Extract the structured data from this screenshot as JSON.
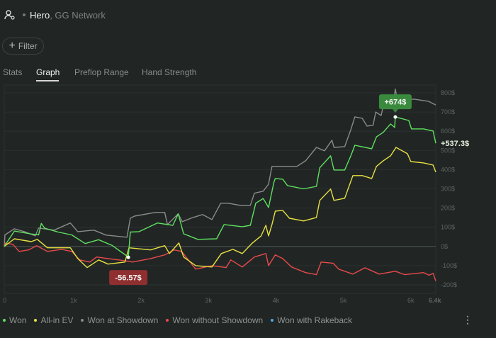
{
  "header": {
    "player": "Hero",
    "network": ", GG Network",
    "icon": "user-settings-icon"
  },
  "filter": {
    "label": "Filter",
    "icon": "plus-icon"
  },
  "tabs": [
    {
      "label": "Stats",
      "active": false
    },
    {
      "label": "Graph",
      "active": true
    },
    {
      "label": "Preflop Range",
      "active": false
    },
    {
      "label": "Hand Strength",
      "active": false
    }
  ],
  "colors": {
    "won": "#5fe05f",
    "allin_ev": "#e8e040",
    "showdown": "#8a8a8a",
    "non_showdown": "#e84a4a",
    "rakeback": "#4aa8e8",
    "peak_tooltip": "#3a8a3e",
    "low_tooltip": "#8f2f2f"
  },
  "chart_data": {
    "type": "line",
    "x_ticks": [
      "0",
      "1k",
      "2k",
      "3k",
      "4k",
      "5k",
      "6k",
      "6.4k"
    ],
    "x_tick_values": [
      0,
      1000,
      2000,
      3000,
      4000,
      5000,
      6000,
      6400
    ],
    "y_ticks": [
      "800$",
      "700$",
      "600$",
      "500$",
      "400$",
      "300$",
      "200$",
      "100$",
      "0$",
      "-100$",
      "-200$"
    ],
    "y_tick_values": [
      800,
      700,
      600,
      500,
      400,
      300,
      200,
      100,
      0,
      -100,
      -200
    ],
    "xlim": [
      0,
      6400
    ],
    "ylim": [
      -200,
      800
    ],
    "grid": true,
    "legend": "bottom",
    "end_label": "+537.3$",
    "annotations": [
      {
        "text": "+674$",
        "x": 5800,
        "y": 674,
        "series": "Won"
      },
      {
        "text": "-56.57$",
        "x": 1840,
        "y": -56.57,
        "series": "Won"
      }
    ],
    "series": [
      {
        "name": "Won",
        "key": "won",
        "points": [
          [
            0,
            0
          ],
          [
            150,
            80
          ],
          [
            400,
            65
          ],
          [
            510,
            60
          ],
          [
            550,
            120
          ],
          [
            600,
            95
          ],
          [
            800,
            75
          ],
          [
            1000,
            60
          ],
          [
            1200,
            15
          ],
          [
            1400,
            35
          ],
          [
            1600,
            5
          ],
          [
            1800,
            -45
          ],
          [
            1840,
            -56.57
          ],
          [
            1870,
            75
          ],
          [
            2000,
            77
          ],
          [
            2270,
            122
          ],
          [
            2500,
            110
          ],
          [
            2580,
            170
          ],
          [
            2660,
            66
          ],
          [
            2870,
            37
          ],
          [
            3150,
            40
          ],
          [
            3260,
            114
          ],
          [
            3530,
            103
          ],
          [
            3650,
            110
          ],
          [
            3730,
            225
          ],
          [
            3840,
            250
          ],
          [
            3920,
            203
          ],
          [
            4000,
            335
          ],
          [
            4020,
            354
          ],
          [
            4130,
            350
          ],
          [
            4200,
            317
          ],
          [
            4440,
            300
          ],
          [
            4630,
            313
          ],
          [
            4680,
            410
          ],
          [
            4840,
            472
          ],
          [
            4890,
            398
          ],
          [
            5050,
            398
          ],
          [
            5140,
            472
          ],
          [
            5200,
            527
          ],
          [
            5450,
            509
          ],
          [
            5520,
            571
          ],
          [
            5620,
            594
          ],
          [
            5730,
            638
          ],
          [
            5790,
            620
          ],
          [
            5800,
            674
          ],
          [
            6000,
            656
          ],
          [
            6040,
            612
          ],
          [
            6220,
            612
          ],
          [
            6360,
            601
          ],
          [
            6400,
            537.3
          ]
        ]
      },
      {
        "name": "All-in EV",
        "key": "allin_ev",
        "points": [
          [
            0,
            0
          ],
          [
            150,
            40
          ],
          [
            400,
            25
          ],
          [
            490,
            37
          ],
          [
            640,
            -7
          ],
          [
            980,
            -7
          ],
          [
            1090,
            -63
          ],
          [
            1230,
            -110
          ],
          [
            1400,
            -70
          ],
          [
            1540,
            -92
          ],
          [
            1790,
            -81
          ],
          [
            1850,
            -7
          ],
          [
            2170,
            -18
          ],
          [
            2380,
            4
          ],
          [
            2450,
            -37
          ],
          [
            2590,
            18
          ],
          [
            2660,
            -55
          ],
          [
            2840,
            -100
          ],
          [
            3080,
            -107
          ],
          [
            3220,
            -37
          ],
          [
            3390,
            -15
          ],
          [
            3530,
            -37
          ],
          [
            3680,
            18
          ],
          [
            3810,
            55
          ],
          [
            3880,
            110
          ],
          [
            3920,
            55
          ],
          [
            3970,
            114
          ],
          [
            4020,
            184
          ],
          [
            4130,
            188
          ],
          [
            4230,
            147
          ],
          [
            4440,
            133
          ],
          [
            4630,
            151
          ],
          [
            4680,
            240
          ],
          [
            4840,
            299
          ],
          [
            4890,
            240
          ],
          [
            5050,
            251
          ],
          [
            5170,
            369
          ],
          [
            5310,
            369
          ],
          [
            5450,
            354
          ],
          [
            5520,
            417
          ],
          [
            5620,
            446
          ],
          [
            5730,
            472
          ],
          [
            5810,
            516
          ],
          [
            5980,
            483
          ],
          [
            6030,
            442
          ],
          [
            6220,
            435
          ],
          [
            6360,
            424
          ],
          [
            6400,
            387
          ]
        ]
      },
      {
        "name": "Won at Showdown",
        "key": "showdown",
        "points": [
          [
            0,
            0
          ],
          [
            10,
            60
          ],
          [
            150,
            92
          ],
          [
            300,
            77
          ],
          [
            460,
            55
          ],
          [
            510,
            96
          ],
          [
            740,
            85
          ],
          [
            980,
            122
          ],
          [
            1090,
            77
          ],
          [
            1330,
            85
          ],
          [
            1510,
            59
          ],
          [
            1820,
            48
          ],
          [
            1870,
            147
          ],
          [
            1930,
            158
          ],
          [
            2240,
            177
          ],
          [
            2380,
            177
          ],
          [
            2420,
            114
          ],
          [
            2580,
            170
          ],
          [
            2640,
            129
          ],
          [
            2800,
            151
          ],
          [
            2940,
            166
          ],
          [
            3080,
            140
          ],
          [
            3210,
            225
          ],
          [
            3320,
            225
          ],
          [
            3500,
            214
          ],
          [
            3650,
            214
          ],
          [
            3710,
            277
          ],
          [
            3840,
            288
          ],
          [
            3920,
            324
          ],
          [
            3970,
            417
          ],
          [
            4340,
            417
          ],
          [
            4470,
            446
          ],
          [
            4630,
            516
          ],
          [
            4750,
            498
          ],
          [
            4860,
            553
          ],
          [
            4890,
            516
          ],
          [
            5050,
            520
          ],
          [
            5140,
            608
          ],
          [
            5200,
            675
          ],
          [
            5310,
            667
          ],
          [
            5380,
            627
          ],
          [
            5470,
            631
          ],
          [
            5510,
            700
          ],
          [
            5590,
            682
          ],
          [
            5620,
            730
          ],
          [
            5770,
            741
          ],
          [
            5800,
            820
          ],
          [
            5830,
            760
          ],
          [
            6080,
            767
          ],
          [
            6290,
            756
          ],
          [
            6400,
            737
          ]
        ]
      },
      {
        "name": "Won without Showdown",
        "key": "non_showdown",
        "points": [
          [
            0,
            0
          ],
          [
            10,
            18
          ],
          [
            130,
            11
          ],
          [
            220,
            -26
          ],
          [
            360,
            -18
          ],
          [
            480,
            4
          ],
          [
            640,
            -26
          ],
          [
            850,
            -15
          ],
          [
            1000,
            -26
          ],
          [
            1120,
            -70
          ],
          [
            1270,
            -81
          ],
          [
            1370,
            -55
          ],
          [
            1540,
            -63
          ],
          [
            1790,
            -74
          ],
          [
            1900,
            -81
          ],
          [
            2170,
            -63
          ],
          [
            2380,
            -44
          ],
          [
            2520,
            -18
          ],
          [
            2630,
            -26
          ],
          [
            2730,
            -70
          ],
          [
            2840,
            -118
          ],
          [
            3080,
            -100
          ],
          [
            3290,
            -110
          ],
          [
            3360,
            -70
          ],
          [
            3530,
            -107
          ],
          [
            3710,
            -55
          ],
          [
            3880,
            -37
          ],
          [
            3920,
            -100
          ],
          [
            4020,
            -44
          ],
          [
            4130,
            -63
          ],
          [
            4260,
            -107
          ],
          [
            4470,
            -136
          ],
          [
            4630,
            -147
          ],
          [
            4700,
            -81
          ],
          [
            4880,
            -88
          ],
          [
            4960,
            -118
          ],
          [
            5170,
            -144
          ],
          [
            5350,
            -111
          ],
          [
            5560,
            -144
          ],
          [
            5800,
            -129
          ],
          [
            5940,
            -147
          ],
          [
            6220,
            -136
          ],
          [
            6300,
            -150
          ],
          [
            6360,
            -140
          ],
          [
            6400,
            -180
          ]
        ]
      },
      {
        "name": "Won with Rakeback",
        "key": "rakeback",
        "points": []
      }
    ]
  },
  "legend": [
    {
      "label": "Won",
      "key": "won"
    },
    {
      "label": "All-in EV",
      "key": "allin_ev"
    },
    {
      "label": "Won at Showdown",
      "key": "showdown"
    },
    {
      "label": "Won without Showdown",
      "key": "non_showdown"
    },
    {
      "label": "Won with Rakeback",
      "key": "rakeback"
    }
  ],
  "more_menu": {
    "label": "⋮",
    "icon": "more-vertical-icon"
  }
}
